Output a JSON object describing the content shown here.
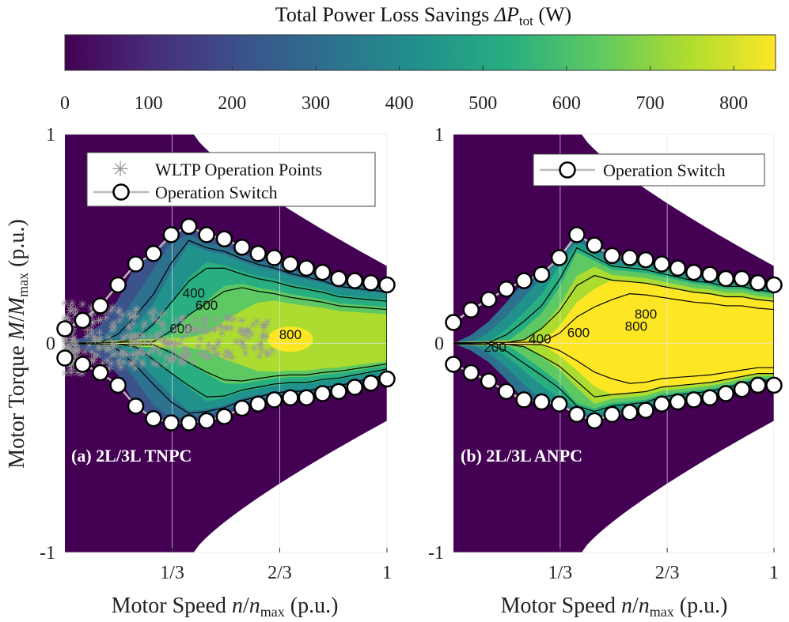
{
  "colorbar": {
    "title_prefix": "Total Power Loss Savings ",
    "title_symbol": "ΔP",
    "title_sub": "tot",
    "title_unit": " (W)",
    "ticks": [
      0,
      100,
      200,
      300,
      400,
      500,
      600,
      700,
      800
    ],
    "range": [
      0,
      850
    ],
    "colormap": [
      "#440154",
      "#472d7b",
      "#3b528b",
      "#2c728e",
      "#21918c",
      "#28ae80",
      "#5ec962",
      "#addc30",
      "#fde725"
    ]
  },
  "colors": {
    "outside_region": "#440154",
    "marker_edge": "#000000",
    "marker_fill": "#ffffff",
    "switch_line": "#bbbbbb",
    "wltp": "#999999",
    "grid": "#e6e6e6"
  },
  "chart_data": [
    {
      "type": "heatmap",
      "panel": "(a) 2L/3L TNPC",
      "xlabel": "Motor Speed n/n_max (p.u.)",
      "ylabel": "Motor Torque M/M_max (p.u.)",
      "xlim": [
        0,
        1
      ],
      "ylim": [
        -1,
        1
      ],
      "x_tick_labels": [
        "1/3",
        "2/3",
        "1"
      ],
      "x_tick_values": [
        0.333,
        0.667,
        1.0
      ],
      "y_tick_labels": [
        "1",
        "0",
        "-1"
      ],
      "y_tick_values": [
        1,
        0,
        -1
      ],
      "max_torque_envelope": {
        "base_torque": 1.0,
        "base_speed": 0.4,
        "min_torque_at_max_speed": 0.37
      },
      "contour_levels": [
        200,
        400,
        600,
        800
      ],
      "contour_labels": [
        "400",
        "600",
        "600",
        "800"
      ],
      "peak_value_W": 830,
      "legend": [
        "WLTP Operation Points",
        "Operation Switch"
      ],
      "wltp_points": {
        "speed_range": [
          0.0,
          0.65
        ],
        "torque_range": [
          -0.15,
          0.2
        ]
      },
      "operation_switch_upper": [
        [
          0.0,
          0.07
        ],
        [
          0.055,
          0.11
        ],
        [
          0.11,
          0.18
        ],
        [
          0.165,
          0.28
        ],
        [
          0.22,
          0.38
        ],
        [
          0.275,
          0.43
        ],
        [
          0.33,
          0.52
        ],
        [
          0.385,
          0.56
        ],
        [
          0.44,
          0.52
        ],
        [
          0.495,
          0.5
        ],
        [
          0.55,
          0.46
        ],
        [
          0.6,
          0.43
        ],
        [
          0.65,
          0.41
        ],
        [
          0.7,
          0.38
        ],
        [
          0.75,
          0.36
        ],
        [
          0.8,
          0.34
        ],
        [
          0.85,
          0.31
        ],
        [
          0.9,
          0.3
        ],
        [
          0.95,
          0.29
        ],
        [
          1.0,
          0.28
        ]
      ],
      "operation_switch_lower": [
        [
          0.0,
          -0.07
        ],
        [
          0.055,
          -0.1
        ],
        [
          0.11,
          -0.14
        ],
        [
          0.165,
          -0.2
        ],
        [
          0.22,
          -0.3
        ],
        [
          0.275,
          -0.36
        ],
        [
          0.33,
          -0.38
        ],
        [
          0.385,
          -0.38
        ],
        [
          0.44,
          -0.37
        ],
        [
          0.495,
          -0.35
        ],
        [
          0.55,
          -0.31
        ],
        [
          0.6,
          -0.29
        ],
        [
          0.65,
          -0.27
        ],
        [
          0.7,
          -0.26
        ],
        [
          0.75,
          -0.26
        ],
        [
          0.8,
          -0.24
        ],
        [
          0.85,
          -0.23
        ],
        [
          0.9,
          -0.21
        ],
        [
          0.95,
          -0.19
        ],
        [
          1.0,
          -0.17
        ]
      ]
    },
    {
      "type": "heatmap",
      "panel": "(b) 2L/3L ANPC",
      "xlabel": "Motor Speed n/n_max (p.u.)",
      "ylabel": "",
      "xlim": [
        0,
        1
      ],
      "ylim": [
        -1,
        1
      ],
      "x_tick_labels": [
        "1/3",
        "2/3",
        "1"
      ],
      "x_tick_values": [
        0.333,
        0.667,
        1.0
      ],
      "y_tick_labels": [
        "1",
        "0",
        "-1"
      ],
      "y_tick_values": [
        1,
        0,
        -1
      ],
      "max_torque_envelope": {
        "base_torque": 1.0,
        "base_speed": 0.4,
        "min_torque_at_max_speed": 0.37
      },
      "contour_levels": [
        200,
        400,
        600,
        800
      ],
      "contour_labels": [
        "200",
        "400",
        "600",
        "800",
        "800"
      ],
      "peak_value_W": 850,
      "legend": [
        "Operation Switch"
      ],
      "operation_switch_upper": [
        [
          0.0,
          0.1
        ],
        [
          0.055,
          0.16
        ],
        [
          0.11,
          0.21
        ],
        [
          0.165,
          0.26
        ],
        [
          0.22,
          0.3
        ],
        [
          0.275,
          0.33
        ],
        [
          0.33,
          0.41
        ],
        [
          0.385,
          0.52
        ],
        [
          0.44,
          0.47
        ],
        [
          0.495,
          0.42
        ],
        [
          0.55,
          0.41
        ],
        [
          0.6,
          0.4
        ],
        [
          0.65,
          0.38
        ],
        [
          0.7,
          0.36
        ],
        [
          0.75,
          0.34
        ],
        [
          0.8,
          0.33
        ],
        [
          0.85,
          0.31
        ],
        [
          0.9,
          0.31
        ],
        [
          0.95,
          0.29
        ],
        [
          1.0,
          0.28
        ]
      ],
      "operation_switch_lower": [
        [
          0.0,
          -0.1
        ],
        [
          0.055,
          -0.14
        ],
        [
          0.11,
          -0.18
        ],
        [
          0.165,
          -0.23
        ],
        [
          0.22,
          -0.27
        ],
        [
          0.275,
          -0.28
        ],
        [
          0.33,
          -0.29
        ],
        [
          0.385,
          -0.34
        ],
        [
          0.44,
          -0.37
        ],
        [
          0.495,
          -0.34
        ],
        [
          0.55,
          -0.33
        ],
        [
          0.6,
          -0.32
        ],
        [
          0.65,
          -0.29
        ],
        [
          0.7,
          -0.28
        ],
        [
          0.75,
          -0.27
        ],
        [
          0.8,
          -0.26
        ],
        [
          0.85,
          -0.24
        ],
        [
          0.9,
          -0.22
        ],
        [
          0.95,
          -0.2
        ],
        [
          1.0,
          -0.2
        ]
      ]
    }
  ]
}
